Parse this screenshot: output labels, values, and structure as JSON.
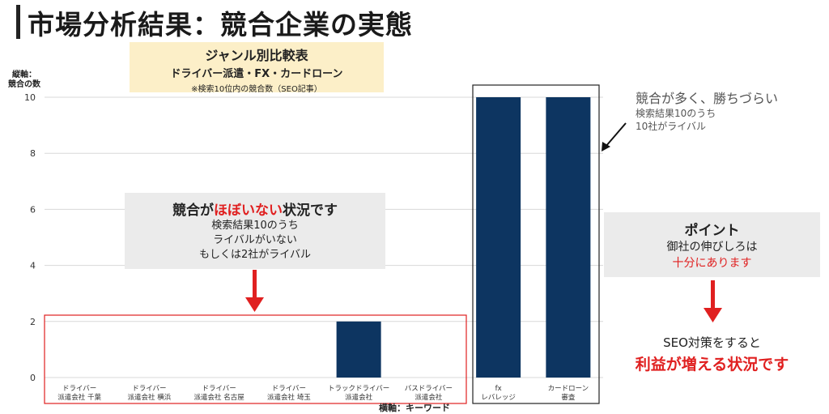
{
  "page": {
    "title": "市場分析結果：競合企業の実態"
  },
  "genre_box": {
    "line1": "ジャンル別比較表",
    "line2": "ドライバー派遣・FX・カードローン",
    "line3": "※検索10位内の競合数（SEO記事）"
  },
  "axes": {
    "ylabel_line1": "縦軸：",
    "ylabel_line2": "競合の数",
    "xlabel": "横軸：キーワード"
  },
  "note_left": {
    "head_pre": "競合が",
    "head_em": "ほぼいない",
    "head_post": "状況です",
    "line1": "検索結果10のうち",
    "line2": "ライバルがいない",
    "line3": "もしくは2社がライバル"
  },
  "competition_note": {
    "head": "競合が多く、勝ちづらい",
    "line1": "検索結果10のうち",
    "line2": "10社がライバル"
  },
  "note_right": {
    "head": "ポイント",
    "line1": "御社の伸びしろは",
    "line2": "十分にあります"
  },
  "seo_note": {
    "line1": "SEO対策をすると",
    "line2": "利益が増える状況です"
  },
  "colors": {
    "bar": "#0d3561",
    "highlight_red": "#e02020",
    "note_bg": "#ebebeb",
    "genre_bg": "#fcefc8"
  },
  "chart_data": {
    "type": "bar",
    "categories": [
      [
        "ドライバー",
        "派遣会社 千葉"
      ],
      [
        "ドライバー",
        "派遣会社 横浜"
      ],
      [
        "ドライバー",
        "派遣会社 名古屋"
      ],
      [
        "ドライバー",
        "派遣会社 埼玉"
      ],
      [
        "トラックドライバー",
        "派遣会社"
      ],
      [
        "バスドライバー",
        "派遣会社"
      ],
      [
        "fx",
        "レバレッジ"
      ],
      [
        "カードローン",
        "審査"
      ]
    ],
    "values": [
      0,
      0,
      0,
      0,
      2,
      0,
      10,
      10
    ],
    "yticks": [
      0,
      2,
      4,
      6,
      8,
      10
    ],
    "ylim": [
      0,
      10
    ],
    "grid": true
  }
}
